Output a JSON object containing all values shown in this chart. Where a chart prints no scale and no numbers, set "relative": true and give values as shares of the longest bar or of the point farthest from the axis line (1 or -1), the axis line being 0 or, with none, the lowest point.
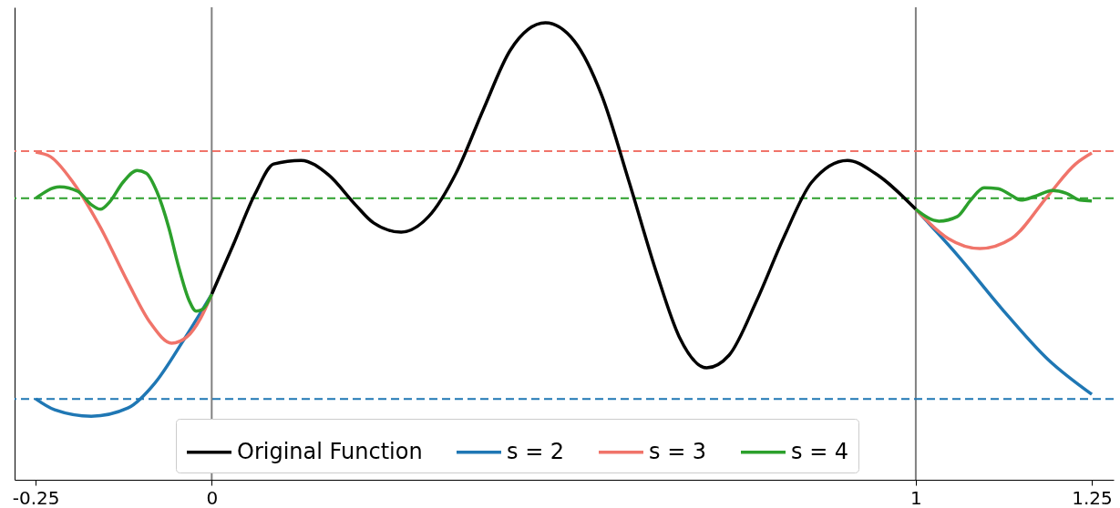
{
  "chart_data": {
    "type": "line",
    "relative": true,
    "xlim": [
      -0.28,
      1.281
    ],
    "xticks": [
      -0.25,
      0,
      1,
      1.25
    ],
    "grid": false,
    "legend": "bottom",
    "marker": "none",
    "series": [
      {
        "name": "Original Function",
        "color": "#000000",
        "x": [
          0,
          0.03,
          0.062,
          0.088,
          0.127,
          0.166,
          0.204,
          0.23,
          0.269,
          0.308,
          0.347,
          0.386,
          0.424,
          0.474,
          0.515,
          0.554,
          0.593,
          0.632,
          0.664,
          0.703,
          0.735,
          0.774,
          0.813,
          0.852,
          0.903,
          0.942,
          1
        ],
        "values": [
          0.406,
          0.512,
          0.627,
          0.691,
          0.699,
          0.667,
          0.602,
          0.562,
          0.542,
          0.576,
          0.671,
          0.811,
          0.94,
          1,
          0.96,
          0.841,
          0.651,
          0.452,
          0.313,
          0.245,
          0.273,
          0.392,
          0.532,
          0.651,
          0.699,
          0.671,
          0.592
        ]
      },
      {
        "name": "s = 2",
        "color": "#1f77b4",
        "x": [
          -0.25,
          -0.223,
          -0.171,
          -0.119,
          -0.08,
          -0.041,
          0,
          0.5,
          1,
          1.059,
          1.123,
          1.188,
          1.25
        ],
        "values": [
          0.177,
          0.153,
          0.139,
          0.157,
          0.213,
          0.303,
          0.406,
          null,
          0.592,
          0.492,
          0.373,
          0.263,
          0.187
        ]
      },
      {
        "name": "s = 3",
        "color": "#f0746a",
        "x": [
          -0.25,
          -0.229,
          -0.197,
          -0.158,
          -0.119,
          -0.087,
          -0.057,
          -0.035,
          -0.016,
          0,
          0.5,
          1,
          1.046,
          1.091,
          1.136,
          1.188,
          1.227,
          1.25
        ],
        "values": [
          0.717,
          0.707,
          0.651,
          0.552,
          0.432,
          0.343,
          0.299,
          0.313,
          0.353,
          0.406,
          null,
          0.592,
          0.528,
          0.506,
          0.528,
          0.622,
          0.691,
          0.715
        ]
      },
      {
        "name": "s = 4",
        "color": "#2ca02c",
        "x": [
          -0.25,
          -0.216,
          -0.19,
          -0.171,
          -0.158,
          -0.145,
          -0.126,
          -0.106,
          -0.093,
          -0.078,
          -0.061,
          -0.048,
          -0.032,
          -0.022,
          -0.013,
          0,
          0.5,
          1,
          1.033,
          1.059,
          1.078,
          1.097,
          1.117,
          1.136,
          1.149,
          1.169,
          1.194,
          1.214,
          1.233,
          1.25
        ],
        "values": [
          0.616,
          0.641,
          0.631,
          0.602,
          0.592,
          0.608,
          0.651,
          0.677,
          0.671,
          0.631,
          0.552,
          0.472,
          0.392,
          0.369,
          0.373,
          0.406,
          null,
          0.592,
          0.566,
          0.576,
          0.612,
          0.639,
          0.637,
          0.622,
          0.612,
          0.62,
          0.633,
          0.627,
          0.612,
          0.61
        ]
      }
    ],
    "ref_lines": [
      {
        "axis": "x",
        "value": 0,
        "color": "#808080",
        "line_style": "solid"
      },
      {
        "axis": "x",
        "value": 1,
        "color": "#808080",
        "line_style": "solid"
      },
      {
        "axis": "y",
        "value": 0.719,
        "color": "#f0746a",
        "line_style": "dashed"
      },
      {
        "axis": "y",
        "value": 0.616,
        "color": "#2ca02c",
        "line_style": "dashed"
      },
      {
        "axis": "y",
        "value": 0.177,
        "color": "#1f77b4",
        "line_style": "dashed"
      }
    ]
  }
}
